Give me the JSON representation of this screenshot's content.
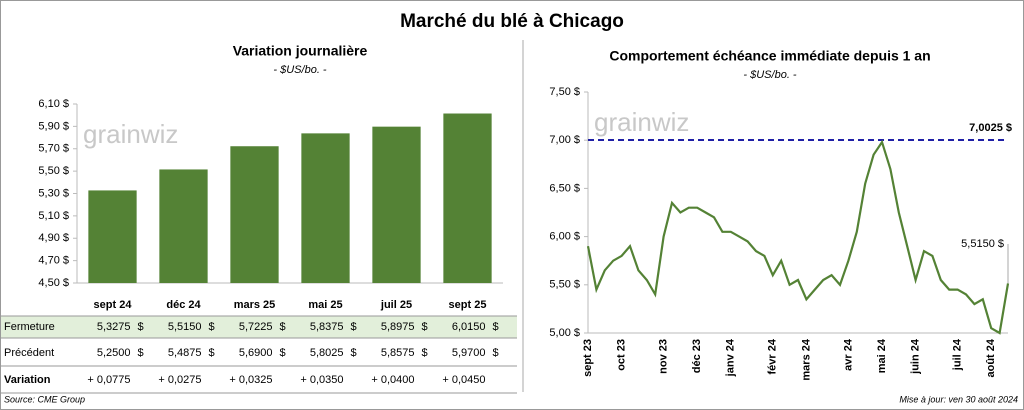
{
  "title": "Marché du blé à Chicago",
  "chart_data": [
    {
      "type": "bar",
      "title": "Variation journalière",
      "subtitle": "- $US/bo. -",
      "watermark": "grainwiz",
      "categories": [
        "sept 24",
        "déc 24",
        "mars 25",
        "mai 25",
        "juil 25",
        "sept 25"
      ],
      "values": [
        5.3275,
        5.515,
        5.7225,
        5.8375,
        5.8975,
        6.015
      ],
      "value_labels": [
        "5,3275",
        "5,5150",
        "5,7225",
        "5,8375",
        "5,8975",
        "6,0150"
      ],
      "color": "#548235",
      "grid": false,
      "ylim": [
        4.5,
        6.1
      ],
      "yticks": [
        {
          "value": 4.5,
          "label": "4,50 $"
        },
        {
          "value": 4.7,
          "label": "4,70 $"
        },
        {
          "value": 4.9,
          "label": "4,90 $"
        },
        {
          "value": 5.1,
          "label": "5,10 $"
        },
        {
          "value": 5.3,
          "label": "5,30 $"
        },
        {
          "value": 5.5,
          "label": "5,50 $"
        },
        {
          "value": 5.7,
          "label": "5,70 $"
        },
        {
          "value": 5.9,
          "label": "5,90 $"
        },
        {
          "value": 6.1,
          "label": "6,10 $"
        }
      ]
    },
    {
      "type": "line",
      "title": "Comportement échéance immédiate depuis 1 an",
      "subtitle": "- $US/bo. -",
      "watermark": "grainwiz",
      "categories": [
        "sept 23",
        null,
        null,
        null,
        "oct 23",
        null,
        null,
        null,
        null,
        "nov 23",
        null,
        null,
        null,
        "déc 23",
        null,
        null,
        null,
        "janv 24",
        null,
        null,
        null,
        null,
        "févr 24",
        null,
        null,
        null,
        "mars 24",
        null,
        null,
        null,
        null,
        "avr 24",
        null,
        null,
        null,
        "mai 24",
        null,
        null,
        null,
        "juin 24",
        null,
        null,
        null,
        null,
        "juil 24",
        null,
        null,
        null,
        "août 24",
        null,
        null
      ],
      "values": [
        5.9,
        5.45,
        5.65,
        5.75,
        5.8,
        5.9,
        5.65,
        5.55,
        5.4,
        6.0,
        6.35,
        6.25,
        6.3,
        6.3,
        6.25,
        6.2,
        6.05,
        6.05,
        6.0,
        5.95,
        5.85,
        5.8,
        5.6,
        5.75,
        5.5,
        5.55,
        5.35,
        5.45,
        5.55,
        5.6,
        5.5,
        5.75,
        6.05,
        6.55,
        6.85,
        6.98,
        6.7,
        6.25,
        5.9,
        5.55,
        5.85,
        5.8,
        5.55,
        5.45,
        5.45,
        5.4,
        5.3,
        5.35,
        5.05,
        5.0,
        5.515
      ],
      "last_value_label": "5,5150 $",
      "color": "#548235",
      "grid": false,
      "reference_line": {
        "value": 7.0025,
        "label": "7,0025 $",
        "color": "#1f1fa6"
      },
      "ylim": [
        5.0,
        7.5
      ],
      "yticks": [
        {
          "value": 5.0,
          "label": "5,00 $"
        },
        {
          "value": 5.5,
          "label": "5,50 $"
        },
        {
          "value": 6.0,
          "label": "6,00 $"
        },
        {
          "value": 6.5,
          "label": "6,50 $"
        },
        {
          "value": 7.0,
          "label": "7,00 $"
        },
        {
          "value": 7.5,
          "label": "7,50 $"
        }
      ]
    }
  ],
  "table": {
    "currency": "$",
    "close_label": "Fermeture",
    "rows": [
      {
        "label": "Précédent",
        "cells": [
          "5,2500",
          "5,4875",
          "5,6900",
          "5,8025",
          "5,8575",
          "5,9700"
        ]
      },
      {
        "label": "Variation",
        "cells": [
          "+ 0,0775",
          "+ 0,0275",
          "+ 0,0325",
          "+ 0,0350",
          "+ 0,0400",
          "+ 0,0450"
        ]
      }
    ]
  },
  "footer": {
    "source": "Source: CME Group",
    "updated": "Mise à jour: ven 30 août 2024"
  }
}
